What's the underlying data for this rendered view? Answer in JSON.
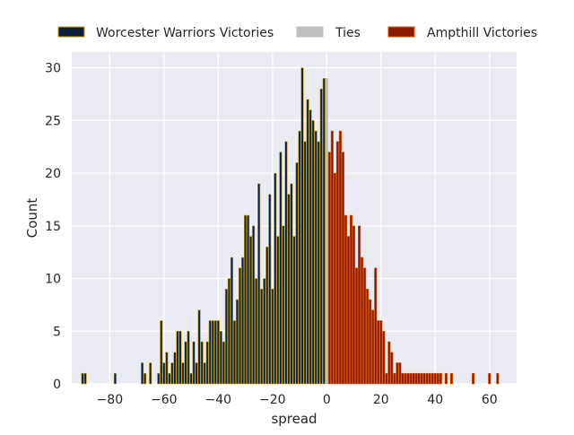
{
  "chart_data": {
    "type": "bar",
    "title": "",
    "xlabel": "spread",
    "ylabel": "Count",
    "xlim": [
      -94,
      70
    ],
    "ylim": [
      0,
      31.5
    ],
    "x_ticks": [
      -80,
      -60,
      -40,
      -20,
      0,
      20,
      40,
      60
    ],
    "x_tick_labels": [
      "−80",
      "−60",
      "−40",
      "−20",
      "0",
      "20",
      "40",
      "60"
    ],
    "y_ticks": [
      0,
      5,
      10,
      15,
      20,
      25,
      30
    ],
    "y_tick_labels": [
      "0",
      "5",
      "10",
      "15",
      "20",
      "25",
      "30"
    ],
    "grid": true,
    "legend_position": "top",
    "colors": {
      "background": "#eaeaf2",
      "grid": "#ffffff",
      "worcester_fill": "#0d1f3c",
      "worcester_edge": "#c8a200",
      "ties_fill": "#bfbfbf",
      "ampthill_fill": "#8b1a00",
      "ampthill_edge": "#e05a00"
    },
    "legend": [
      {
        "label": "Worcester Warriors Victories",
        "series": "worcester"
      },
      {
        "label": "Ties",
        "series": "ties"
      },
      {
        "label": "Ampthill Victories",
        "series": "ampthill"
      }
    ],
    "series": [
      {
        "name": "Worcester Warriors Victories",
        "key": "worcester",
        "x": [
          -90,
          -89,
          -78,
          -68,
          -67,
          -65,
          -62,
          -61,
          -60,
          -59,
          -58,
          -57,
          -56,
          -55,
          -54,
          -53,
          -52,
          -51,
          -50,
          -49,
          -48,
          -47,
          -46,
          -45,
          -44,
          -43,
          -42,
          -41,
          -40,
          -39,
          -38,
          -37,
          -36,
          -35,
          -34,
          -33,
          -32,
          -31,
          -30,
          -29,
          -28,
          -27,
          -26,
          -25,
          -24,
          -23,
          -22,
          -21,
          -20,
          -19,
          -18,
          -17,
          -16,
          -15,
          -14,
          -13,
          -12,
          -11,
          -10,
          -9,
          -8,
          -7,
          -6,
          -5,
          -4,
          -3,
          -2,
          -1
        ],
        "y": [
          1,
          1,
          1,
          2,
          1,
          2,
          1,
          6,
          2,
          3,
          1,
          2,
          3,
          5,
          5,
          2,
          4,
          5,
          1,
          4,
          2,
          7,
          4,
          2,
          4,
          6,
          6,
          6,
          6,
          5,
          4,
          9,
          10,
          12,
          6,
          8,
          11,
          12,
          16,
          16,
          14,
          15,
          10,
          19,
          9,
          10,
          13,
          18,
          9,
          20,
          14,
          22,
          15,
          23,
          18,
          19,
          14,
          21,
          24,
          30,
          23,
          27,
          26,
          25,
          24,
          23,
          28,
          29
        ]
      },
      {
        "name": "Ties",
        "key": "ties",
        "x": [
          0
        ],
        "y": [
          29
        ]
      },
      {
        "name": "Ampthill Victories",
        "key": "ampthill",
        "x": [
          1,
          2,
          3,
          4,
          5,
          6,
          7,
          8,
          9,
          10,
          11,
          12,
          13,
          14,
          15,
          16,
          17,
          18,
          19,
          20,
          21,
          22,
          23,
          24,
          25,
          26,
          27,
          28,
          29,
          30,
          31,
          32,
          33,
          34,
          35,
          36,
          37,
          38,
          39,
          40,
          41,
          42,
          44,
          46,
          54,
          60,
          63
        ],
        "y": [
          22,
          24,
          20,
          23,
          24,
          22,
          16,
          14,
          16,
          15,
          11,
          15,
          12,
          11,
          9,
          8,
          7,
          11,
          6,
          6,
          5,
          1,
          4,
          3,
          1,
          2,
          2,
          1,
          1,
          1,
          1,
          1,
          1,
          1,
          1,
          1,
          1,
          1,
          1,
          1,
          1,
          1,
          1,
          1,
          1,
          1,
          1
        ]
      }
    ]
  }
}
